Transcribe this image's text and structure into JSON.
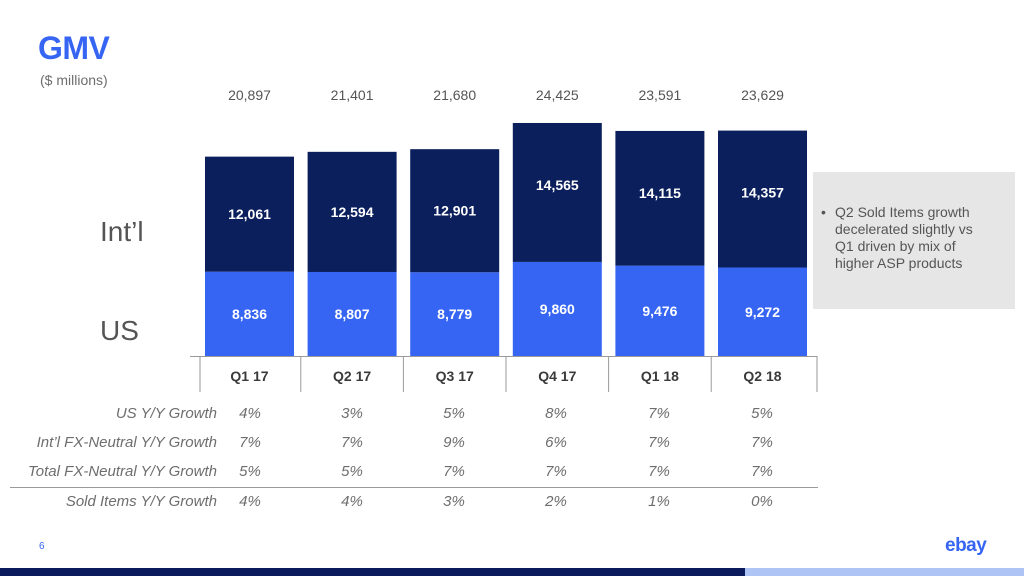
{
  "slide": {
    "title": "GMV",
    "subtitle": "($ millions)",
    "page_number": "6",
    "logo_text": "ebay"
  },
  "segment_labels": {
    "intl": "Int’l",
    "us": "US"
  },
  "callout": {
    "bullet": "•",
    "lines": [
      "Q2 Sold Items growth",
      "decelerated slightly vs",
      "Q1 driven by mix of",
      "higher ASP products"
    ]
  },
  "chart_data": {
    "type": "bar",
    "stacked": true,
    "categories": [
      "Q1 17",
      "Q2 17",
      "Q3 17",
      "Q4 17",
      "Q1 18",
      "Q2 18"
    ],
    "series": [
      {
        "name": "US",
        "values": [
          8836,
          8807,
          8779,
          9860,
          9476,
          9272
        ],
        "labels": [
          "8,836",
          "8,807",
          "8,779",
          "9,860",
          "9,476",
          "9,272"
        ],
        "color": "#3665f3"
      },
      {
        "name": "Int’l",
        "values": [
          12061,
          12594,
          12901,
          14565,
          14115,
          14357
        ],
        "labels": [
          "12,061",
          "12,594",
          "12,901",
          "14,565",
          "14,115",
          "14,357"
        ],
        "color": "#0a1f5c"
      }
    ],
    "totals": [
      20897,
      21401,
      21680,
      24425,
      23591,
      23629
    ],
    "total_labels": [
      "20,897",
      "21,401",
      "21,680",
      "24,425",
      "23,591",
      "23,629"
    ],
    "title": "GMV",
    "subtitle": "($ millions)",
    "xlabel": "",
    "ylabel": "",
    "grid": false,
    "y_axis_shown": false
  },
  "growth_table": {
    "rows": [
      {
        "label": "US Y/Y Growth",
        "values": [
          "4%",
          "3%",
          "5%",
          "8%",
          "7%",
          "5%"
        ]
      },
      {
        "label": "Int’l FX-Neutral Y/Y Growth",
        "values": [
          "7%",
          "7%",
          "9%",
          "6%",
          "7%",
          "7%"
        ]
      },
      {
        "label": "Total FX-Neutral Y/Y Growth",
        "values": [
          "5%",
          "5%",
          "7%",
          "7%",
          "7%",
          "7%"
        ]
      },
      {
        "label": "Sold Items Y/Y Growth",
        "values": [
          "4%",
          "4%",
          "3%",
          "2%",
          "1%",
          "0%"
        ]
      }
    ]
  },
  "colors": {
    "accent": "#3665f3",
    "intl_bar": "#0a1f5c",
    "us_bar": "#3665f3",
    "text_gray": "#6d6d6d",
    "callout_bg": "#e6e6e6",
    "footer_dark": "#0a1a5c",
    "footer_light": "#aec4f5"
  }
}
